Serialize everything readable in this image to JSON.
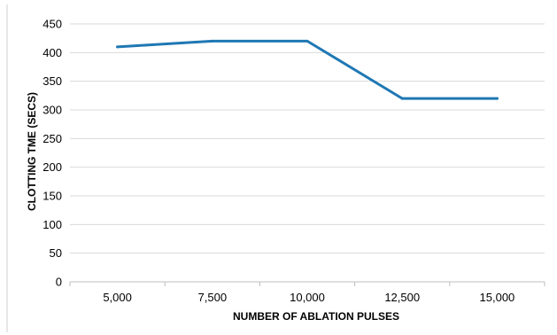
{
  "chart_data": {
    "type": "line",
    "categories": [
      "5,000",
      "7,500",
      "10,000",
      "12,500",
      "15,000"
    ],
    "series": [
      {
        "values": [
          410,
          420,
          420,
          320,
          320
        ],
        "color": "#1f78b4"
      }
    ],
    "xlabel": "NUMBER OF ABLATION PULSES",
    "ylabel": "CLOTTING TME (SECS)",
    "ylim": [
      0,
      450
    ],
    "yticks": [
      "0",
      "50",
      "100",
      "150",
      "200",
      "250",
      "300",
      "350",
      "400",
      "450"
    ],
    "grid": true,
    "legend": "none"
  }
}
